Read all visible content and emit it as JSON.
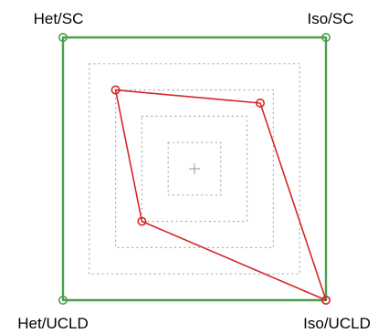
{
  "chart_data": {
    "type": "radar",
    "axes": [
      "Het/SC",
      "Iso/SC",
      "Iso/UCLD",
      "Het/UCLD"
    ],
    "range": [
      0,
      1
    ],
    "grid": "dotted concentric squares",
    "grid_levels": [
      0.2,
      0.4,
      0.6,
      0.8,
      1.0
    ],
    "series": [
      {
        "color": "#4aa04a",
        "values": [
          1.0,
          1.0,
          1.0,
          1.0
        ]
      },
      {
        "color": "#d62728",
        "values": [
          0.6,
          0.5,
          1.0,
          0.4
        ]
      }
    ]
  }
}
